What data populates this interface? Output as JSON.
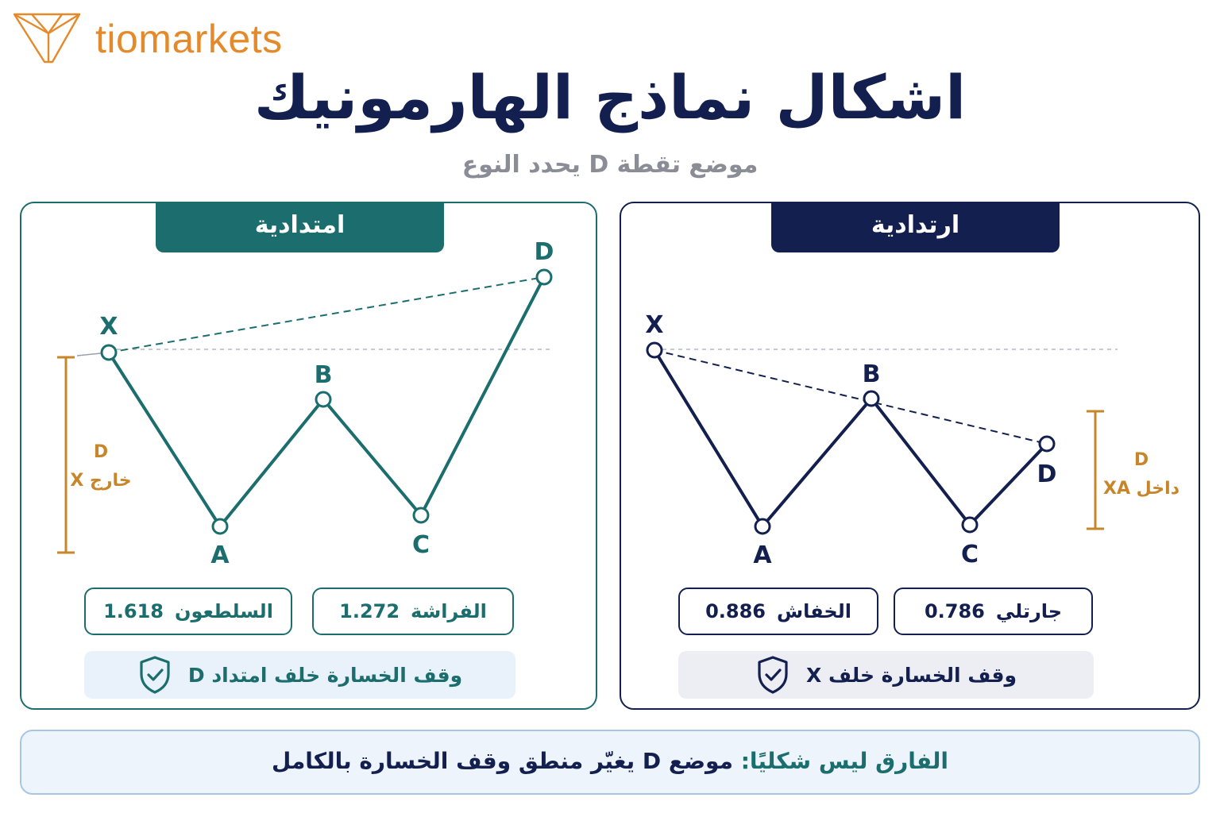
{
  "brand": {
    "name": "tiomarkets",
    "logo_icon": "tio-shield-icon",
    "color": "#e58a2b"
  },
  "title": "اشكال نماذج الهارمونيك",
  "subtitle": "موضع تقطة D يحدد النوع",
  "colors": {
    "navy": "#13204f",
    "teal": "#1b6e6d",
    "gold": "#c8862b",
    "gray": "#8a8d96"
  },
  "continuation": {
    "header": "امتدادية",
    "points": {
      "x": "X",
      "a": "A",
      "b": "B",
      "c": "C",
      "d": "D"
    },
    "zone_label_d": "D",
    "zone_label": "خارج X",
    "ratios": [
      {
        "name": "الفراشة",
        "value": "1.272"
      },
      {
        "name": "السلطعون",
        "value": "1.618"
      }
    ],
    "stop_loss": "وقف الخسارة خلف امتداد D",
    "stop_icon": "shield-check-icon"
  },
  "reversal": {
    "header": "ارتدادية",
    "points": {
      "x": "X",
      "a": "A",
      "b": "B",
      "c": "C",
      "d": "D"
    },
    "zone_label_d": "D",
    "zone_label": "داخل XA",
    "ratios": [
      {
        "name": "جارتلي",
        "value": "0.786"
      },
      {
        "name": "الخفاش",
        "value": "0.886"
      }
    ],
    "stop_loss": "وقف الخسارة خلف X",
    "stop_icon": "shield-check-icon"
  },
  "footer": {
    "lead": "الفارق ليس شكليًا:",
    "text": "موضع D يغيّر منطق وقف الخسارة بالكامل"
  }
}
